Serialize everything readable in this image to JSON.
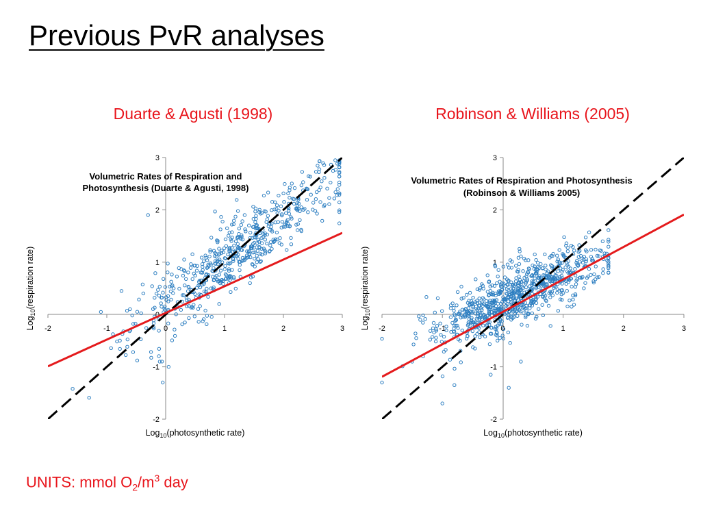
{
  "title": "Previous PvR analyses",
  "units": {
    "prefix": "UNITS: mmol O",
    "sub": "2",
    "mid": "/m",
    "sup": "3",
    "suffix": " day"
  },
  "colors": {
    "points": "#2e7fc1",
    "regression": "#e41a1c",
    "one_to_one": "#000000",
    "subtitle": "#e8141b"
  },
  "chart_data": [
    {
      "type": "scatter",
      "subtitle": "Duarte & Agusti (1998)",
      "title_line1": "Volumetric Rates of Respiration and",
      "title_line2": "Photosynthesis (Duarte & Agusti, 1998)",
      "xlabel": "Log10(photosynthetic rate)",
      "ylabel": "Log10(respiration rate)",
      "xlim": [
        -2,
        3
      ],
      "ylim": [
        -2,
        3
      ],
      "xticks": [
        "-2",
        "-1",
        "0",
        "1",
        "2",
        "3"
      ],
      "yticks": [
        "-2",
        "-1",
        "0",
        "1",
        "2",
        "3"
      ],
      "regression_line": {
        "slope": 0.51,
        "intercept": 0.03
      },
      "one_to_one_line": {
        "slope": 1,
        "intercept": 0
      },
      "points": {
        "n": 600,
        "seed": 11,
        "x_min": -1.3,
        "x_max": 2.95,
        "x_mean": 1.2,
        "x_sd": 0.9,
        "slope": 0.85,
        "intercept": 0.15,
        "resid_sd": 0.35,
        "extra": [
          [
            -1.58,
            -1.42
          ],
          [
            -0.3,
            1.9
          ],
          [
            -0.05,
            -1.3
          ],
          [
            -0.1,
            -0.9
          ],
          [
            0.05,
            -1.0
          ],
          [
            -0.6,
            -0.3
          ],
          [
            -0.75,
            0.45
          ],
          [
            -1.1,
            0.05
          ]
        ]
      }
    },
    {
      "type": "scatter",
      "subtitle": "Robinson & Williams (2005)",
      "title_line1": "Volumetric Rates of Respiration and Photosynthesis",
      "title_line2": "(Robinson & Williams 2005)",
      "xlabel": "Log10(photosynthetic rate)",
      "ylabel": "Log10(respiration rate)",
      "xlim": [
        -2,
        3
      ],
      "ylim": [
        -2,
        3
      ],
      "xticks": [
        "-2",
        "-1",
        "0",
        "1",
        "2",
        "3"
      ],
      "yticks": [
        "-2",
        "-1",
        "0",
        "1",
        "2",
        "3"
      ],
      "regression_line": {
        "slope": 0.62,
        "intercept": 0.05
      },
      "one_to_one_line": {
        "slope": 1,
        "intercept": 0
      },
      "points": {
        "n": 850,
        "seed": 29,
        "x_min": -2.0,
        "x_max": 1.75,
        "x_mean": 0.25,
        "x_sd": 0.7,
        "slope": 0.5,
        "intercept": 0.25,
        "resid_sd": 0.28,
        "extra": [
          [
            -1.0,
            -1.7
          ],
          [
            0.1,
            -1.4
          ],
          [
            -0.8,
            -1.35
          ],
          [
            -0.2,
            -1.15
          ],
          [
            -2.0,
            -1.3
          ],
          [
            -1.5,
            -0.9
          ],
          [
            0.3,
            -0.9
          ]
        ]
      }
    }
  ]
}
